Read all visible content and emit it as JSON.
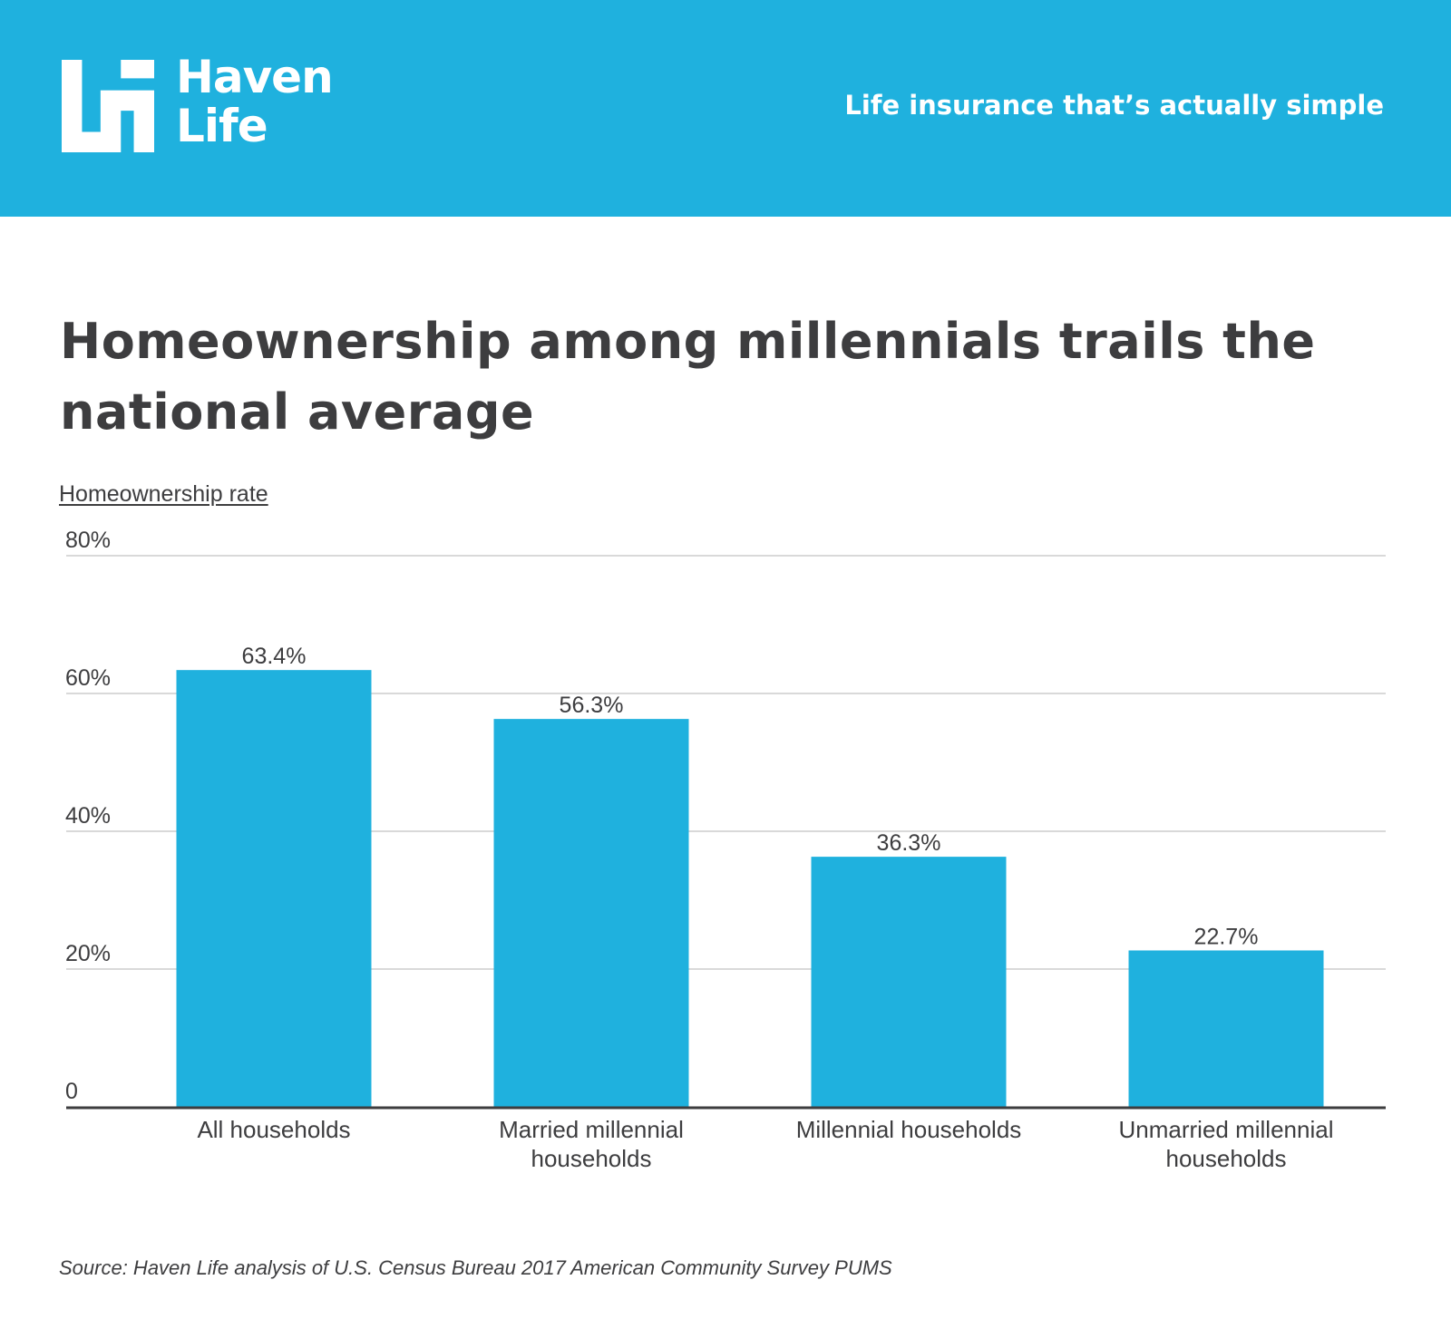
{
  "brand": {
    "logo_lines": [
      "Haven",
      "Life"
    ],
    "tagline": "Life insurance that’s actually simple",
    "header_color": "#1fb1de"
  },
  "chart_data": {
    "type": "bar",
    "title": "Homeownership among millennials trails the national average",
    "ylabel": "Homeownership rate",
    "xlabel": "",
    "categories": [
      [
        "All households"
      ],
      [
        "Married millennial",
        "households"
      ],
      [
        "Millennial households"
      ],
      [
        "Unmarried millennial",
        "households"
      ]
    ],
    "values": [
      63.4,
      56.3,
      36.3,
      22.7
    ],
    "value_labels": [
      "63.4%",
      "56.3%",
      "36.3%",
      "22.7%"
    ],
    "ylim": [
      0,
      80
    ],
    "yticks": [
      0,
      20,
      40,
      60,
      80
    ],
    "ytick_labels": [
      "0",
      "20%",
      "40%",
      "60%",
      "80%"
    ],
    "grid": true,
    "legend": "none",
    "bar_color": "#1fb1de"
  },
  "source": "Source: Haven Life analysis of  U.S. Census Bureau 2017 American Community Survey PUMS"
}
